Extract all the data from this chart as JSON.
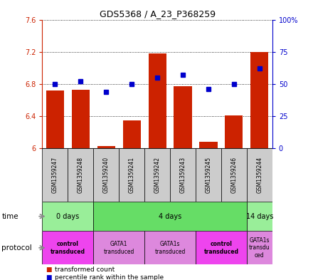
{
  "title": "GDS5368 / A_23_P368259",
  "samples": [
    "GSM1359247",
    "GSM1359248",
    "GSM1359240",
    "GSM1359241",
    "GSM1359242",
    "GSM1359243",
    "GSM1359245",
    "GSM1359246",
    "GSM1359244"
  ],
  "transformed_counts": [
    6.72,
    6.73,
    6.03,
    6.35,
    7.18,
    6.77,
    6.08,
    6.41,
    7.2
  ],
  "percentile_ranks": [
    50,
    52,
    44,
    50,
    55,
    57,
    46,
    50,
    62
  ],
  "ylim_left": [
    6.0,
    7.6
  ],
  "ylim_right": [
    0,
    100
  ],
  "yticks_left": [
    6.0,
    6.4,
    6.8,
    7.2,
    7.6
  ],
  "yticks_right": [
    0,
    25,
    50,
    75,
    100
  ],
  "ytick_labels_left": [
    "6",
    "6.4",
    "6.8",
    "7.2",
    "7.6"
  ],
  "ytick_labels_right": [
    "0",
    "25",
    "50",
    "75",
    "100%"
  ],
  "bar_color": "#cc2200",
  "dot_color": "#0000cc",
  "baseline": 6.0,
  "time_groups": [
    {
      "label": "0 days",
      "start": 0,
      "end": 2,
      "color": "#99ee99"
    },
    {
      "label": "4 days",
      "start": 2,
      "end": 8,
      "color": "#66dd66"
    },
    {
      "label": "14 days",
      "start": 8,
      "end": 9,
      "color": "#99ee99"
    }
  ],
  "protocol_groups": [
    {
      "label": "control\ntransduced",
      "start": 0,
      "end": 2,
      "color": "#ee44ee",
      "bold": true
    },
    {
      "label": "GATA1\ntransduced",
      "start": 2,
      "end": 4,
      "color": "#dd88dd",
      "bold": false
    },
    {
      "label": "GATA1s\ntransduced",
      "start": 4,
      "end": 6,
      "color": "#dd88dd",
      "bold": false
    },
    {
      "label": "control\ntransduced",
      "start": 6,
      "end": 8,
      "color": "#ee44ee",
      "bold": true
    },
    {
      "label": "GATA1s\ntransdu\nced",
      "start": 8,
      "end": 9,
      "color": "#dd88dd",
      "bold": false
    }
  ],
  "legend_items": [
    {
      "color": "#cc2200",
      "label": "transformed count"
    },
    {
      "color": "#0000cc",
      "label": "percentile rank within the sample"
    }
  ],
  "bg_color": "#ffffff",
  "sample_box_color": "#cccccc"
}
